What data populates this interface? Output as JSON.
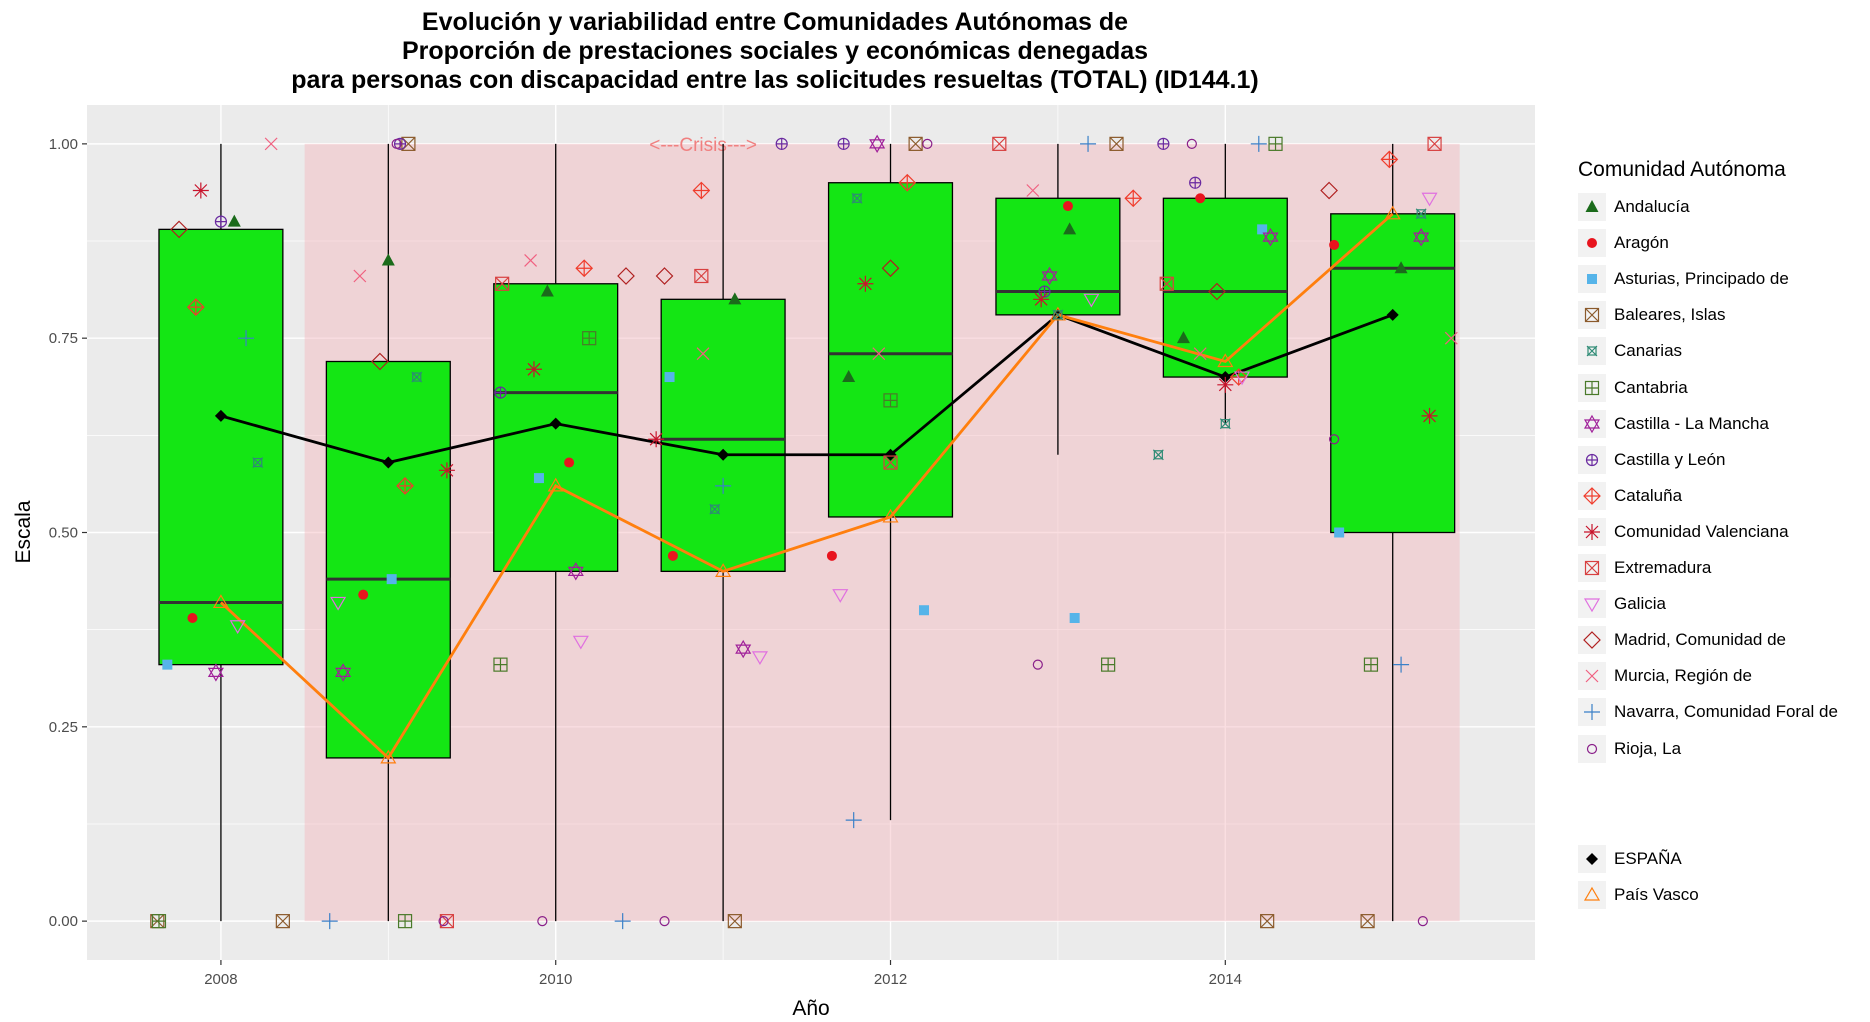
{
  "title_lines": [
    "Evolución y variabilidad entre Comunidades Autónomas de",
    "Proporción de prestaciones sociales y económicas denegadas",
    "para personas con discapacidad entre las solicitudes resueltas (TOTAL) (ID144.1)"
  ],
  "legend": {
    "title": "Comunidad Autónoma",
    "items": [
      {
        "label": "Andalucía",
        "color": "#1b6b1b",
        "shape": "triangle-filled"
      },
      {
        "label": "Aragón",
        "color": "#e8141e",
        "shape": "circle-filled"
      },
      {
        "label": "Asturias, Principado de",
        "color": "#56b4e9",
        "shape": "square-filled"
      },
      {
        "label": "Baleares, Islas",
        "color": "#8b5a2b",
        "shape": "square-x"
      },
      {
        "label": "Canarias",
        "color": "#2e8b75",
        "shape": "square-cross"
      },
      {
        "label": "Cantabria",
        "color": "#4a7a2a",
        "shape": "square-plus"
      },
      {
        "label": "Castilla - La Mancha",
        "color": "#a0209a",
        "shape": "star-david"
      },
      {
        "label": "Castilla y León",
        "color": "#6a2aa0",
        "shape": "circle-plus"
      },
      {
        "label": "Cataluña",
        "color": "#f03c2c",
        "shape": "diamond-plus"
      },
      {
        "label": "Comunidad Valenciana",
        "color": "#c8142c",
        "shape": "asterisk"
      },
      {
        "label": "Extremadura",
        "color": "#d84040",
        "shape": "square-x"
      },
      {
        "label": "Galicia",
        "color": "#e070e0",
        "shape": "triangle-down"
      },
      {
        "label": "Madrid, Comunidad de",
        "color": "#b02020",
        "shape": "diamond"
      },
      {
        "label": "Murcia, Región de",
        "color": "#f06080",
        "shape": "x"
      },
      {
        "label": "Navarra, Comunidad Foral de",
        "color": "#3a80c8",
        "shape": "plus"
      },
      {
        "label": "Rioja, La",
        "color": "#8a208a",
        "shape": "circle"
      }
    ],
    "items2": [
      {
        "label": "ESPAÑA",
        "color": "#000000",
        "shape": "diamond-filled"
      },
      {
        "label": "País Vasco",
        "color": "#ff7f0e",
        "shape": "triangle"
      }
    ]
  },
  "chart_data": {
    "type": "box",
    "title": "Evolución y variabilidad entre Comunidades Autónomas de Proporción de prestaciones sociales y económicas denegadas para personas con discapacidad entre las solicitudes resueltas (TOTAL) (ID144.1)",
    "xlabel": "Año",
    "ylabel": "Escala",
    "xlim": [
      2007.2,
      2015.85
    ],
    "ylim": [
      -0.05,
      1.05
    ],
    "x_ticks": [
      2008,
      2010,
      2012,
      2014
    ],
    "y_ticks": [
      0.0,
      0.25,
      0.5,
      0.75,
      1.0
    ],
    "y_tick_labels": [
      "0.00",
      "0.25",
      "0.50",
      "0.75",
      "1.00"
    ],
    "crisis_band": {
      "x_start": 2008.5,
      "x_end": 2015.4,
      "y_start": 0,
      "y_end": 1,
      "label": "<---Crisis--->",
      "color": "#f4b6bc"
    },
    "box_color": "#14e614",
    "boxes": [
      {
        "x": 2008,
        "low": 0.0,
        "q1": 0.33,
        "median": 0.41,
        "q3": 0.89,
        "high": 1.0
      },
      {
        "x": 2009,
        "low": 0.0,
        "q1": 0.21,
        "median": 0.44,
        "q3": 0.72,
        "high": 1.0
      },
      {
        "x": 2010,
        "low": 0.0,
        "q1": 0.45,
        "median": 0.68,
        "q3": 0.82,
        "high": 1.0
      },
      {
        "x": 2011,
        "low": 0.0,
        "q1": 0.45,
        "median": 0.62,
        "q3": 0.8,
        "high": 1.0
      },
      {
        "x": 2012,
        "low": 0.13,
        "q1": 0.52,
        "median": 0.73,
        "q3": 0.95,
        "high": 1.0
      },
      {
        "x": 2013,
        "low": 0.6,
        "q1": 0.78,
        "median": 0.81,
        "q3": 0.93,
        "high": 1.0
      },
      {
        "x": 2014,
        "low": 0.64,
        "q1": 0.7,
        "median": 0.81,
        "q3": 0.93,
        "high": 1.0
      },
      {
        "x": 2015,
        "low": 0.0,
        "q1": 0.5,
        "median": 0.84,
        "q3": 0.91,
        "high": 1.0
      }
    ],
    "lines": [
      {
        "name": "ESPAÑA",
        "color": "#000000",
        "x": [
          2008,
          2009,
          2010,
          2011,
          2012,
          2013,
          2014,
          2015
        ],
        "y": [
          0.65,
          0.59,
          0.64,
          0.6,
          0.6,
          0.78,
          0.7,
          0.78
        ]
      },
      {
        "name": "País Vasco",
        "color": "#ff7f0e",
        "x": [
          2008,
          2009,
          2010,
          2011,
          2012,
          2013,
          2014,
          2015
        ],
        "y": [
          0.41,
          0.21,
          0.56,
          0.45,
          0.52,
          0.78,
          0.72,
          0.91
        ]
      }
    ],
    "points": [
      {
        "series": 0,
        "x": 2008.08,
        "y": 0.9
      },
      {
        "series": 0,
        "x": 2009.0,
        "y": 0.85
      },
      {
        "series": 0,
        "x": 2009.95,
        "y": 0.81
      },
      {
        "series": 0,
        "x": 2011.07,
        "y": 0.8
      },
      {
        "series": 0,
        "x": 2011.75,
        "y": 0.7
      },
      {
        "series": 0,
        "x": 2013.07,
        "y": 0.89
      },
      {
        "series": 0,
        "x": 2013.75,
        "y": 0.75
      },
      {
        "series": 0,
        "x": 2015.05,
        "y": 0.84
      },
      {
        "series": 1,
        "x": 2007.83,
        "y": 0.39
      },
      {
        "series": 1,
        "x": 2008.85,
        "y": 0.42
      },
      {
        "series": 1,
        "x": 2010.08,
        "y": 0.59
      },
      {
        "series": 1,
        "x": 2010.7,
        "y": 0.47
      },
      {
        "series": 1,
        "x": 2011.65,
        "y": 0.47
      },
      {
        "series": 1,
        "x": 2013.06,
        "y": 0.92
      },
      {
        "series": 1,
        "x": 2013.85,
        "y": 0.93
      },
      {
        "series": 1,
        "x": 2014.65,
        "y": 0.87
      },
      {
        "series": 2,
        "x": 2007.68,
        "y": 0.33
      },
      {
        "series": 2,
        "x": 2009.02,
        "y": 0.44
      },
      {
        "series": 2,
        "x": 2009.9,
        "y": 0.57
      },
      {
        "series": 2,
        "x": 2010.68,
        "y": 0.7
      },
      {
        "series": 2,
        "x": 2012.2,
        "y": 0.4
      },
      {
        "series": 2,
        "x": 2013.1,
        "y": 0.39
      },
      {
        "series": 2,
        "x": 2014.22,
        "y": 0.89
      },
      {
        "series": 2,
        "x": 2014.68,
        "y": 0.5
      },
      {
        "series": 3,
        "x": 2007.62,
        "y": 0.0
      },
      {
        "series": 3,
        "x": 2008.37,
        "y": 0.0
      },
      {
        "series": 3,
        "x": 2009.12,
        "y": 1.0
      },
      {
        "series": 3,
        "x": 2011.07,
        "y": 0.0
      },
      {
        "series": 3,
        "x": 2012.15,
        "y": 1.0
      },
      {
        "series": 3,
        "x": 2013.35,
        "y": 1.0
      },
      {
        "series": 3,
        "x": 2014.25,
        "y": 0.0
      },
      {
        "series": 3,
        "x": 2014.85,
        "y": 0.0
      },
      {
        "series": 4,
        "x": 2008.22,
        "y": 0.59
      },
      {
        "series": 4,
        "x": 2009.17,
        "y": 0.7
      },
      {
        "series": 4,
        "x": 2010.95,
        "y": 0.53
      },
      {
        "series": 4,
        "x": 2011.8,
        "y": 0.93
      },
      {
        "series": 4,
        "x": 2013.0,
        "y": 0.78
      },
      {
        "series": 4,
        "x": 2013.6,
        "y": 0.6
      },
      {
        "series": 4,
        "x": 2014.0,
        "y": 0.64
      },
      {
        "series": 4,
        "x": 2015.17,
        "y": 0.91
      },
      {
        "series": 5,
        "x": 2007.63,
        "y": 0.0
      },
      {
        "series": 5,
        "x": 2009.1,
        "y": 0.0
      },
      {
        "series": 5,
        "x": 2009.67,
        "y": 0.33
      },
      {
        "series": 5,
        "x": 2010.2,
        "y": 0.75
      },
      {
        "series": 5,
        "x": 2012.0,
        "y": 0.67
      },
      {
        "series": 5,
        "x": 2013.3,
        "y": 0.33
      },
      {
        "series": 5,
        "x": 2014.3,
        "y": 1.0
      },
      {
        "series": 5,
        "x": 2014.87,
        "y": 0.33
      },
      {
        "series": 6,
        "x": 2007.97,
        "y": 0.32
      },
      {
        "series": 6,
        "x": 2008.73,
        "y": 0.32
      },
      {
        "series": 6,
        "x": 2010.12,
        "y": 0.45
      },
      {
        "series": 6,
        "x": 2011.12,
        "y": 0.35
      },
      {
        "series": 6,
        "x": 2011.92,
        "y": 1.0
      },
      {
        "series": 6,
        "x": 2012.95,
        "y": 0.83
      },
      {
        "series": 6,
        "x": 2014.27,
        "y": 0.88
      },
      {
        "series": 6,
        "x": 2015.17,
        "y": 0.88
      },
      {
        "series": 7,
        "x": 2008.0,
        "y": 0.9
      },
      {
        "series": 7,
        "x": 2009.07,
        "y": 1.0
      },
      {
        "series": 7,
        "x": 2009.67,
        "y": 0.68
      },
      {
        "series": 7,
        "x": 2011.35,
        "y": 1.0
      },
      {
        "series": 7,
        "x": 2011.72,
        "y": 1.0
      },
      {
        "series": 7,
        "x": 2012.92,
        "y": 0.81
      },
      {
        "series": 7,
        "x": 2013.63,
        "y": 1.0
      },
      {
        "series": 7,
        "x": 2013.82,
        "y": 0.95
      },
      {
        "series": 8,
        "x": 2007.85,
        "y": 0.79
      },
      {
        "series": 8,
        "x": 2009.1,
        "y": 0.56
      },
      {
        "series": 8,
        "x": 2010.17,
        "y": 0.84
      },
      {
        "series": 8,
        "x": 2010.87,
        "y": 0.94
      },
      {
        "series": 8,
        "x": 2012.1,
        "y": 0.95
      },
      {
        "series": 8,
        "x": 2013.45,
        "y": 0.93
      },
      {
        "series": 8,
        "x": 2014.08,
        "y": 0.7
      },
      {
        "series": 8,
        "x": 2014.98,
        "y": 0.98
      },
      {
        "series": 9,
        "x": 2007.88,
        "y": 0.94
      },
      {
        "series": 9,
        "x": 2009.35,
        "y": 0.58
      },
      {
        "series": 9,
        "x": 2009.87,
        "y": 0.71
      },
      {
        "series": 9,
        "x": 2010.6,
        "y": 0.62
      },
      {
        "series": 9,
        "x": 2011.85,
        "y": 0.82
      },
      {
        "series": 9,
        "x": 2012.9,
        "y": 0.8
      },
      {
        "series": 9,
        "x": 2014.0,
        "y": 0.69
      },
      {
        "series": 9,
        "x": 2015.22,
        "y": 0.65
      },
      {
        "series": 10,
        "x": 2009.35,
        "y": 0.0
      },
      {
        "series": 10,
        "x": 2009.68,
        "y": 0.82
      },
      {
        "series": 10,
        "x": 2010.87,
        "y": 0.83
      },
      {
        "series": 10,
        "x": 2012.0,
        "y": 0.59
      },
      {
        "series": 10,
        "x": 2012.65,
        "y": 1.0
      },
      {
        "series": 10,
        "x": 2013.65,
        "y": 0.82
      },
      {
        "series": 10,
        "x": 2015.25,
        "y": 1.0
      },
      {
        "series": 11,
        "x": 2008.1,
        "y": 0.38
      },
      {
        "series": 11,
        "x": 2008.7,
        "y": 0.41
      },
      {
        "series": 11,
        "x": 2010.15,
        "y": 0.36
      },
      {
        "series": 11,
        "x": 2011.22,
        "y": 0.34
      },
      {
        "series": 11,
        "x": 2011.7,
        "y": 0.42
      },
      {
        "series": 11,
        "x": 2013.2,
        "y": 0.8
      },
      {
        "series": 11,
        "x": 2014.1,
        "y": 0.7
      },
      {
        "series": 11,
        "x": 2015.22,
        "y": 0.93
      },
      {
        "series": 12,
        "x": 2007.75,
        "y": 0.89
      },
      {
        "series": 12,
        "x": 2008.95,
        "y": 0.72
      },
      {
        "series": 12,
        "x": 2010.42,
        "y": 0.83
      },
      {
        "series": 12,
        "x": 2010.65,
        "y": 0.83
      },
      {
        "series": 12,
        "x": 2012.0,
        "y": 0.84
      },
      {
        "series": 12,
        "x": 2013.95,
        "y": 0.81
      },
      {
        "series": 12,
        "x": 2014.62,
        "y": 0.94
      },
      {
        "series": 13,
        "x": 2008.3,
        "y": 1.0
      },
      {
        "series": 13,
        "x": 2008.83,
        "y": 0.83
      },
      {
        "series": 13,
        "x": 2009.85,
        "y": 0.85
      },
      {
        "series": 13,
        "x": 2010.88,
        "y": 0.73
      },
      {
        "series": 13,
        "x": 2011.93,
        "y": 0.73
      },
      {
        "series": 13,
        "x": 2012.85,
        "y": 0.94
      },
      {
        "series": 13,
        "x": 2013.85,
        "y": 0.73
      },
      {
        "series": 13,
        "x": 2015.35,
        "y": 0.75
      },
      {
        "series": 14,
        "x": 2008.15,
        "y": 0.75
      },
      {
        "series": 14,
        "x": 2008.65,
        "y": 0.0
      },
      {
        "series": 14,
        "x": 2010.4,
        "y": 0.0
      },
      {
        "series": 14,
        "x": 2011.0,
        "y": 0.56
      },
      {
        "series": 14,
        "x": 2011.78,
        "y": 0.13
      },
      {
        "series": 14,
        "x": 2013.18,
        "y": 1.0
      },
      {
        "series": 14,
        "x": 2014.2,
        "y": 1.0
      },
      {
        "series": 14,
        "x": 2015.05,
        "y": 0.33
      },
      {
        "series": 15,
        "x": 2009.05,
        "y": 1.0
      },
      {
        "series": 15,
        "x": 2009.33,
        "y": 0.0
      },
      {
        "series": 15,
        "x": 2009.92,
        "y": 0.0
      },
      {
        "series": 15,
        "x": 2010.65,
        "y": 0.0
      },
      {
        "series": 15,
        "x": 2012.22,
        "y": 1.0
      },
      {
        "series": 15,
        "x": 2012.88,
        "y": 0.33
      },
      {
        "series": 15,
        "x": 2013.8,
        "y": 1.0
      },
      {
        "series": 15,
        "x": 2014.65,
        "y": 0.62
      },
      {
        "series": 15,
        "x": 2015.18,
        "y": 0.0
      }
    ]
  }
}
